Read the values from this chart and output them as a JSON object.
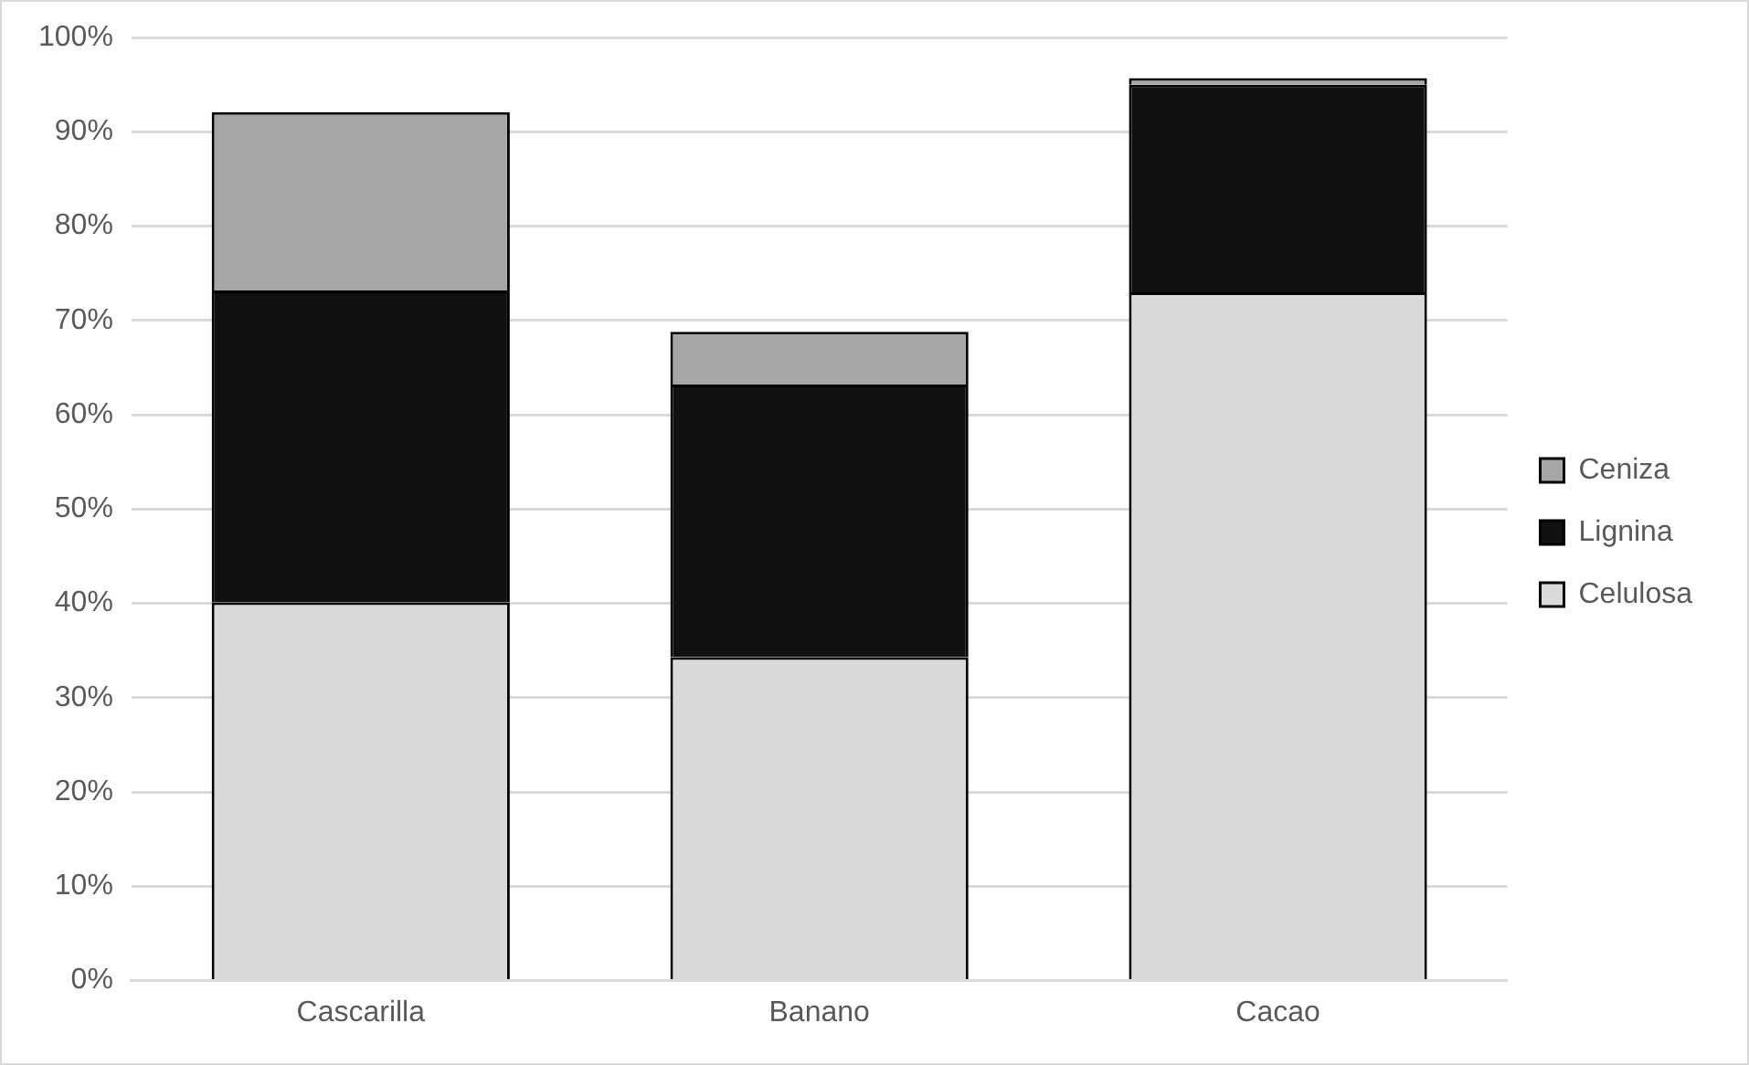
{
  "chart_data": {
    "type": "bar",
    "stacked": true,
    "categories": [
      "Cascarilla",
      "Banano",
      "Cacao"
    ],
    "series": [
      {
        "name": "Celulosa",
        "color": "#d9d9d9",
        "values": [
          40.1,
          34.3,
          73.0
        ]
      },
      {
        "name": "Lignina",
        "color": "#111111",
        "values": [
          33.1,
          28.9,
          22.0
        ]
      },
      {
        "name": "Ceniza",
        "color": "#a6a6a6",
        "values": [
          18.9,
          5.6,
          0.7
        ]
      }
    ],
    "ylim": [
      0,
      100
    ],
    "yticks": [
      {
        "value": 0,
        "label": "0%"
      },
      {
        "value": 10,
        "label": "10%"
      },
      {
        "value": 20,
        "label": "20%"
      },
      {
        "value": 30,
        "label": "30%"
      },
      {
        "value": 40,
        "label": "40%"
      },
      {
        "value": 50,
        "label": "50%"
      },
      {
        "value": 60,
        "label": "60%"
      },
      {
        "value": 70,
        "label": "70%"
      },
      {
        "value": 80,
        "label": "80%"
      },
      {
        "value": 90,
        "label": "90%"
      },
      {
        "value": 100,
        "label": "100%"
      }
    ],
    "grid": "y",
    "legend": "right"
  }
}
